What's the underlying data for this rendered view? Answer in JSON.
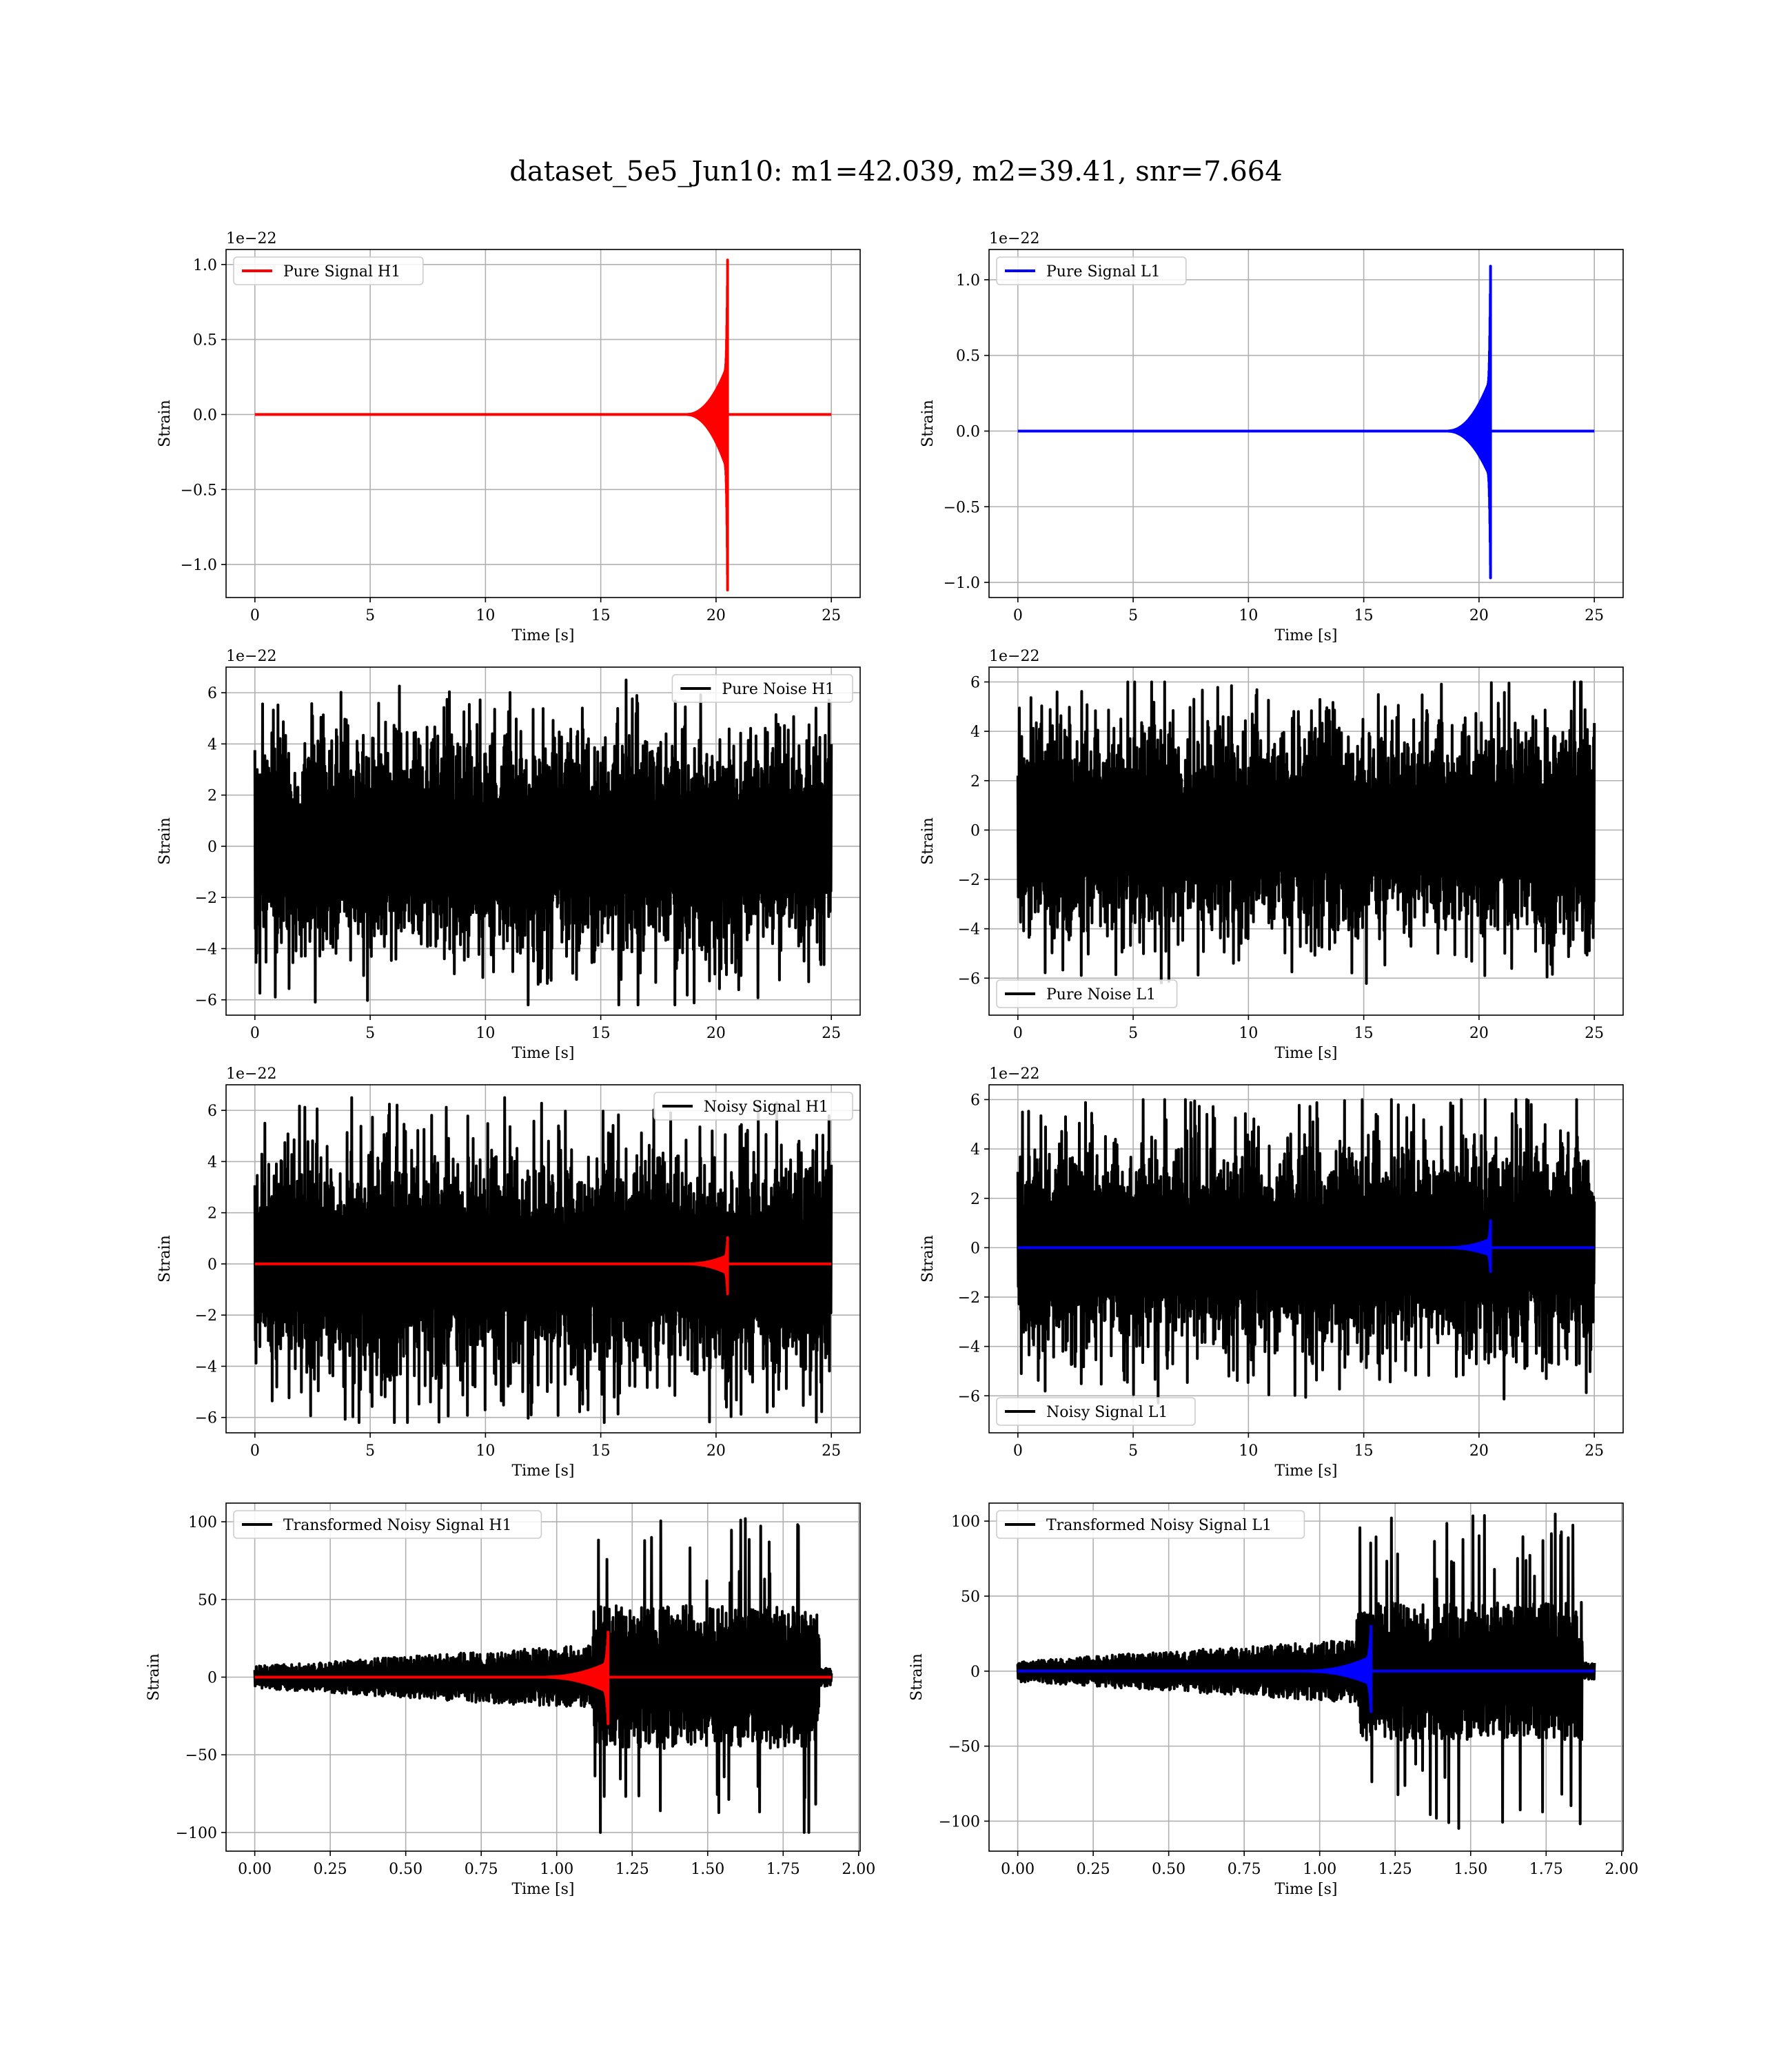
{
  "figure": {
    "title": "dataset_5e5_Jun10: m1=42.039, m2=39.41, snr=7.664"
  },
  "colors": {
    "h1": "#ff0000",
    "l1": "#0000ff",
    "noise": "#000000",
    "grid": "#b0b0b0"
  },
  "chart_data": [
    {
      "type": "line",
      "id": "pure-signal-h1",
      "xlabel": "Time [s]",
      "ylabel": "Strain",
      "offset_text": "1e−22",
      "xlim": [
        -1.25,
        26.25
      ],
      "ylim": [
        -1.22,
        1.1
      ],
      "xticks": [
        0,
        5,
        10,
        15,
        20,
        25
      ],
      "xtick_labels": [
        "0",
        "5",
        "10",
        "15",
        "20",
        "25"
      ],
      "yticks": [
        -1.0,
        -0.5,
        0.0,
        0.5,
        1.0
      ],
      "ytick_labels": [
        "−1.0",
        "−0.5",
        "0.0",
        "0.5",
        "1.0"
      ],
      "legend": {
        "label": "Pure Signal H1",
        "color": "#ff0000",
        "loc": "upper left"
      },
      "series": [
        {
          "kind": "chirp",
          "name": "Pure Signal H1",
          "color": "#ff0000",
          "t_start": 0,
          "t_end": 25,
          "t_merger": 20.5,
          "peak_pos": 1.03,
          "peak_neg": -1.17,
          "envelope_start": 18.7
        }
      ]
    },
    {
      "type": "line",
      "id": "pure-signal-l1",
      "xlabel": "Time [s]",
      "ylabel": "Strain",
      "offset_text": "1e−22",
      "xlim": [
        -1.25,
        26.25
      ],
      "ylim": [
        -1.1,
        1.2
      ],
      "xticks": [
        0,
        5,
        10,
        15,
        20,
        25
      ],
      "xtick_labels": [
        "0",
        "5",
        "10",
        "15",
        "20",
        "25"
      ],
      "yticks": [
        -1.0,
        -0.5,
        0.0,
        0.5,
        1.0
      ],
      "ytick_labels": [
        "−1.0",
        "−0.5",
        "0.0",
        "0.5",
        "1.0"
      ],
      "legend": {
        "label": "Pure Signal L1",
        "color": "#0000ff",
        "loc": "upper left"
      },
      "series": [
        {
          "kind": "chirp",
          "name": "Pure Signal L1",
          "color": "#0000ff",
          "t_start": 0,
          "t_end": 25,
          "t_merger": 20.5,
          "peak_pos": 1.09,
          "peak_neg": -0.97,
          "envelope_start": 18.6
        }
      ]
    },
    {
      "type": "line",
      "id": "pure-noise-h1",
      "xlabel": "Time [s]",
      "ylabel": "Strain",
      "offset_text": "1e−22",
      "xlim": [
        -1.25,
        26.25
      ],
      "ylim": [
        -6.6,
        7.0
      ],
      "xticks": [
        0,
        5,
        10,
        15,
        20,
        25
      ],
      "xtick_labels": [
        "0",
        "5",
        "10",
        "15",
        "20",
        "25"
      ],
      "yticks": [
        -6,
        -4,
        -2,
        0,
        2,
        4,
        6
      ],
      "ytick_labels": [
        "−6",
        "−4",
        "−2",
        "0",
        "2",
        "4",
        "6"
      ],
      "legend": {
        "label": "Pure Noise H1",
        "color": "#000000",
        "loc": "upper right"
      },
      "series": [
        {
          "kind": "noise",
          "name": "Pure Noise H1",
          "color": "#000000",
          "t_start": 0,
          "t_end": 25,
          "max": 6.5,
          "min": -6.2
        }
      ]
    },
    {
      "type": "line",
      "id": "pure-noise-l1",
      "xlabel": "Time [s]",
      "ylabel": "Strain",
      "offset_text": "1e−22",
      "xlim": [
        -1.25,
        26.25
      ],
      "ylim": [
        -7.5,
        6.6
      ],
      "xticks": [
        0,
        5,
        10,
        15,
        20,
        25
      ],
      "xtick_labels": [
        "0",
        "5",
        "10",
        "15",
        "20",
        "25"
      ],
      "yticks": [
        -6,
        -4,
        -2,
        0,
        2,
        4,
        6
      ],
      "ytick_labels": [
        "−6",
        "−4",
        "−2",
        "0",
        "2",
        "4",
        "6"
      ],
      "legend": {
        "label": "Pure Noise L1",
        "color": "#000000",
        "loc": "lower left"
      },
      "series": [
        {
          "kind": "noise",
          "name": "Pure Noise L1",
          "color": "#000000",
          "t_start": 0,
          "t_end": 25,
          "max": 6.0,
          "min": -6.8
        }
      ]
    },
    {
      "type": "line",
      "id": "noisy-signal-h1",
      "xlabel": "Time [s]",
      "ylabel": "Strain",
      "offset_text": "1e−22",
      "xlim": [
        -1.25,
        26.25
      ],
      "ylim": [
        -6.6,
        7.0
      ],
      "xticks": [
        0,
        5,
        10,
        15,
        20,
        25
      ],
      "xtick_labels": [
        "0",
        "5",
        "10",
        "15",
        "20",
        "25"
      ],
      "yticks": [
        -6,
        -4,
        -2,
        0,
        2,
        4,
        6
      ],
      "ytick_labels": [
        "−6",
        "−4",
        "−2",
        "0",
        "2",
        "4",
        "6"
      ],
      "legend": {
        "label": "Noisy Signal H1",
        "color": "#000000",
        "loc": "upper right"
      },
      "series": [
        {
          "kind": "noise",
          "name": "Noisy Signal H1",
          "color": "#000000",
          "t_start": 0,
          "t_end": 25,
          "max": 6.5,
          "min": -6.2
        },
        {
          "kind": "chirp",
          "color": "#ff0000",
          "t_start": 0,
          "t_end": 25,
          "t_merger": 20.5,
          "peak_pos": 1.03,
          "peak_neg": -1.17,
          "envelope_start": 18.7
        }
      ]
    },
    {
      "type": "line",
      "id": "noisy-signal-l1",
      "xlabel": "Time [s]",
      "ylabel": "Strain",
      "offset_text": "1e−22",
      "xlim": [
        -1.25,
        26.25
      ],
      "ylim": [
        -7.5,
        6.6
      ],
      "xticks": [
        0,
        5,
        10,
        15,
        20,
        25
      ],
      "xtick_labels": [
        "0",
        "5",
        "10",
        "15",
        "20",
        "25"
      ],
      "yticks": [
        -6,
        -4,
        -2,
        0,
        2,
        4,
        6
      ],
      "ytick_labels": [
        "−6",
        "−4",
        "−2",
        "0",
        "2",
        "4",
        "6"
      ],
      "legend": {
        "label": "Noisy Signal L1",
        "color": "#000000",
        "loc": "lower left"
      },
      "series": [
        {
          "kind": "noise",
          "name": "Noisy Signal L1",
          "color": "#000000",
          "t_start": 0,
          "t_end": 25,
          "max": 6.0,
          "min": -6.8
        },
        {
          "kind": "chirp",
          "color": "#0000ff",
          "t_start": 0,
          "t_end": 25,
          "t_merger": 20.5,
          "peak_pos": 1.09,
          "peak_neg": -0.97,
          "envelope_start": 18.6
        }
      ]
    },
    {
      "type": "line",
      "id": "transformed-noisy-signal-h1",
      "xlabel": "Time [s]",
      "ylabel": "Strain",
      "offset_text": "",
      "xlim": [
        -0.095,
        2.005
      ],
      "ylim": [
        -112,
        112
      ],
      "xticks": [
        0,
        0.25,
        0.5,
        0.75,
        1.0,
        1.25,
        1.5,
        1.75,
        2.0
      ],
      "xtick_labels": [
        "0.00",
        "0.25",
        "0.50",
        "0.75",
        "1.00",
        "1.25",
        "1.50",
        "1.75",
        "2.00"
      ],
      "yticks": [
        -100,
        -50,
        0,
        50,
        100
      ],
      "ytick_labels": [
        "−100",
        "−50",
        "0",
        "50",
        "100"
      ],
      "legend": {
        "label": "Transformed Noisy Signal H1",
        "color": "#000000",
        "loc": "upper left"
      },
      "series": [
        {
          "kind": "whitened",
          "name": "Transformed Noisy Signal H1",
          "color": "#000000",
          "t_start": 0,
          "t_end": 1.91,
          "t_jump": 1.12,
          "t_cut": 1.87,
          "max": 102,
          "min": -100
        },
        {
          "kind": "chirp",
          "color": "#ff0000",
          "t_start": 0,
          "t_end": 1.91,
          "t_merger": 1.17,
          "peak_pos": 29,
          "peak_neg": -30,
          "envelope_start": 0.95
        }
      ]
    },
    {
      "type": "line",
      "id": "transformed-noisy-signal-l1",
      "xlabel": "Time [s]",
      "ylabel": "Strain",
      "offset_text": "",
      "xlim": [
        -0.095,
        2.005
      ],
      "ylim": [
        -120,
        112
      ],
      "xticks": [
        0,
        0.25,
        0.5,
        0.75,
        1.0,
        1.25,
        1.5,
        1.75,
        2.0
      ],
      "xtick_labels": [
        "0.00",
        "0.25",
        "0.50",
        "0.75",
        "1.00",
        "1.25",
        "1.50",
        "1.75",
        "2.00"
      ],
      "yticks": [
        -100,
        -50,
        0,
        50,
        100
      ],
      "ytick_labels": [
        "−100",
        "−50",
        "0",
        "50",
        "100"
      ],
      "legend": {
        "label": "Transformed Noisy Signal L1",
        "color": "#000000",
        "loc": "upper left"
      },
      "series": [
        {
          "kind": "whitened",
          "name": "Transformed Noisy Signal L1",
          "color": "#000000",
          "t_start": 0,
          "t_end": 1.91,
          "t_jump": 1.12,
          "t_cut": 1.87,
          "max": 105,
          "min": -108
        },
        {
          "kind": "chirp",
          "color": "#0000ff",
          "t_start": 0,
          "t_end": 1.91,
          "t_merger": 1.17,
          "peak_pos": 30,
          "peak_neg": -27,
          "envelope_start": 0.95
        }
      ]
    }
  ]
}
